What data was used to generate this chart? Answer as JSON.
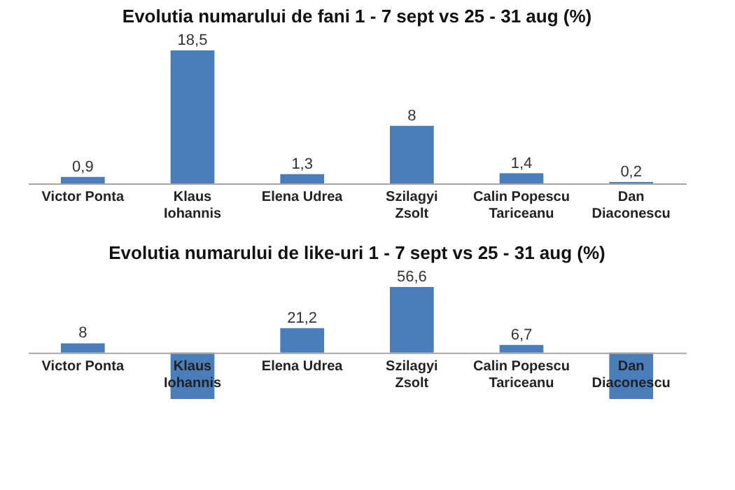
{
  "chart_data": [
    {
      "type": "bar",
      "title": "Evolutia numarului de fani 1 - 7 sept vs  25 - 31 aug (%)",
      "categories": [
        "Victor Ponta",
        "Klaus Iohannis",
        "Elena Udrea",
        "Szilagyi Zsolt",
        "Calin Popescu Tariceanu",
        "Dan Diaconescu"
      ],
      "series": [
        {
          "color": "#4a7ebb",
          "values": [
            0.9,
            18.5,
            1.3,
            8,
            1.4,
            0.2
          ],
          "value_labels": [
            "0,9",
            "18,5",
            "1,3",
            "8",
            "1,4",
            "0,2"
          ]
        }
      ]
    },
    {
      "type": "bar",
      "title": "Evolutia numarului de like-uri 1 - 7 sept vs  25 - 31 aug (%)",
      "categories": [
        "Victor Ponta",
        "Klaus Iohannis",
        "Elena Udrea",
        "Szilagyi Zsolt",
        "Calin Popescu Tariceanu",
        "Dan Diaconescu"
      ],
      "series": [
        {
          "color": "#4a7ebb",
          "values": [
            8,
            -40,
            21.2,
            56.6,
            6.7,
            -40
          ],
          "value_labels": [
            "8",
            null,
            "21,2",
            "56,6",
            "6,7",
            null
          ]
        }
      ]
    }
  ]
}
